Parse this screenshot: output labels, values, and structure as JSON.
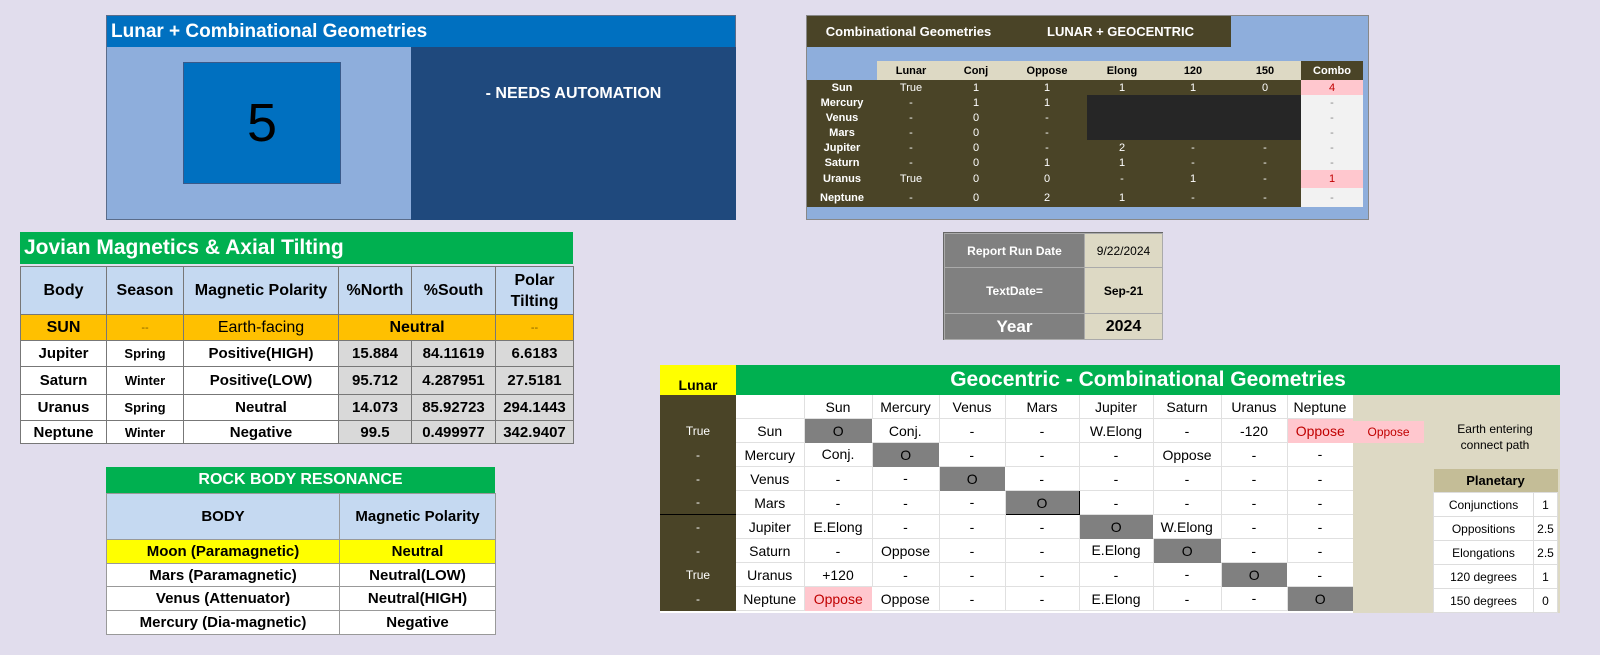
{
  "lunar_panel": {
    "title": "Lunar +  Combinational Geometries",
    "count": "5",
    "note": "- NEEDS AUTOMATION"
  },
  "combo_panel": {
    "header_left": "Combinational Geometries",
    "header_right": "LUNAR + GEOCENTRIC",
    "columns": [
      "Lunar",
      "Conj",
      "Oppose",
      "Elong",
      "120",
      "150",
      "Combo"
    ],
    "rows": [
      {
        "body": "Sun",
        "cells": [
          "True",
          "1",
          "1",
          "1",
          "1",
          "0",
          "4"
        ]
      },
      {
        "body": "Mercury",
        "cells": [
          "-",
          "1",
          "1",
          "",
          "",
          "",
          "-"
        ]
      },
      {
        "body": "Venus",
        "cells": [
          "-",
          "0",
          "-",
          "",
          "",
          "",
          "-"
        ]
      },
      {
        "body": "Mars",
        "cells": [
          "-",
          "0",
          "-",
          "",
          "",
          "",
          "-"
        ]
      },
      {
        "body": "Jupiter",
        "cells": [
          "-",
          "0",
          "-",
          "2",
          "-",
          "-",
          "-"
        ]
      },
      {
        "body": "Saturn",
        "cells": [
          "-",
          "0",
          "1",
          "1",
          "-",
          "-",
          "-"
        ]
      },
      {
        "body": "Uranus",
        "cells": [
          "True",
          "0",
          "0",
          "-",
          "1",
          "-",
          "1"
        ]
      },
      {
        "body": "Neptune",
        "cells": [
          "-",
          "0",
          "2",
          "1",
          "-",
          "-",
          "-"
        ]
      }
    ]
  },
  "report": {
    "run_date_label": "Report Run Date",
    "run_date": "9/22/2024",
    "textdate_label": "TextDate=",
    "textdate": "Sep-21",
    "year_label": "Year",
    "year": "2024"
  },
  "jovian": {
    "title": "Jovian Magnetics & Axial Tilting",
    "headers": [
      "Body",
      "Season",
      "Magnetic Polarity",
      "%North",
      "%South",
      "Polar Tilting"
    ],
    "sun": {
      "body": "SUN",
      "season": "--",
      "polarity": "Earth-facing",
      "status": "Neutral",
      "tilt": "--"
    },
    "rows": [
      {
        "body": "Jupiter",
        "season": "Spring",
        "polarity": "Positive(HIGH)",
        "north": "15.884",
        "south": "84.11619",
        "tilt": "6.6183"
      },
      {
        "body": "Saturn",
        "season": "Winter",
        "polarity": "Positive(LOW)",
        "north": "95.712",
        "south": "4.287951",
        "tilt": "27.5181"
      },
      {
        "body": "Uranus",
        "season": "Spring",
        "polarity": "Neutral",
        "north": "14.073",
        "south": "85.92723",
        "tilt": "294.1443"
      },
      {
        "body": "Neptune",
        "season": "Winter",
        "polarity": "Negative",
        "north": "99.5",
        "south": "0.499977",
        "tilt": "342.9407"
      }
    ]
  },
  "rock": {
    "title": "ROCK BODY RESONANCE",
    "headers": [
      "BODY",
      "Magnetic Polarity"
    ],
    "rows": [
      {
        "body": "Moon (Paramagnetic)",
        "polarity": "Neutral"
      },
      {
        "body": "Mars (Paramagnetic)",
        "polarity": "Neutral(LOW)"
      },
      {
        "body": "Venus (Attenuator)",
        "polarity": "Neutral(HIGH)"
      },
      {
        "body": "Mercury (Dia-magnetic)",
        "polarity": "Negative"
      }
    ]
  },
  "geocentric": {
    "lunar_label": "Lunar Geometry",
    "title": "Geocentric - Combinational Geometries",
    "columns": [
      "Sun",
      "Mercury",
      "Venus",
      "Mars",
      "Jupiter",
      "Saturn",
      "Uranus",
      "Neptune"
    ],
    "rows": [
      {
        "lunar": "True",
        "body": "Sun",
        "cells": [
          "O",
          "Conj.",
          "-",
          "-",
          "W.Elong",
          "-",
          "-120",
          "Oppose"
        ]
      },
      {
        "lunar": "-",
        "body": "Mercury",
        "cells": [
          "Conj.",
          "O",
          "-",
          "-",
          "-",
          "Oppose",
          "-",
          "-"
        ]
      },
      {
        "lunar": "-",
        "body": "Venus",
        "cells": [
          "-",
          "-",
          "O",
          "-",
          "-",
          "-",
          "-",
          "-"
        ]
      },
      {
        "lunar": "-",
        "body": "Mars",
        "cells": [
          "-",
          "-",
          "-",
          "O",
          "-",
          "-",
          "-",
          "-"
        ]
      },
      {
        "lunar": "-",
        "body": "Jupiter",
        "cells": [
          "E.Elong",
          "-",
          "-",
          "-",
          "O",
          "W.Elong",
          "-",
          "-"
        ]
      },
      {
        "lunar": "-",
        "body": "Saturn",
        "cells": [
          "-",
          "Oppose",
          "-",
          "-",
          "E.Elong",
          "O",
          "-",
          "-"
        ]
      },
      {
        "lunar": "True",
        "body": "Uranus",
        "cells": [
          "+120",
          "-",
          "-",
          "-",
          "-",
          "-",
          "O",
          "-"
        ]
      },
      {
        "lunar": "-",
        "body": "Neptune",
        "cells": [
          "Oppose",
          "Oppose",
          "-",
          "-",
          "E.Elong",
          "-",
          "-",
          "O"
        ]
      }
    ],
    "side_oppose": "Oppose",
    "side_note": "Earth entering connect path",
    "planetary": {
      "title": "Planetary",
      "rows": [
        {
          "label": "Conjunctions",
          "value": "1"
        },
        {
          "label": "Oppositions",
          "value": "2.5"
        },
        {
          "label": "Elongations",
          "value": "2.5"
        },
        {
          "label": "120 degrees",
          "value": "1"
        },
        {
          "label": "150 degrees",
          "value": "0"
        }
      ]
    }
  }
}
